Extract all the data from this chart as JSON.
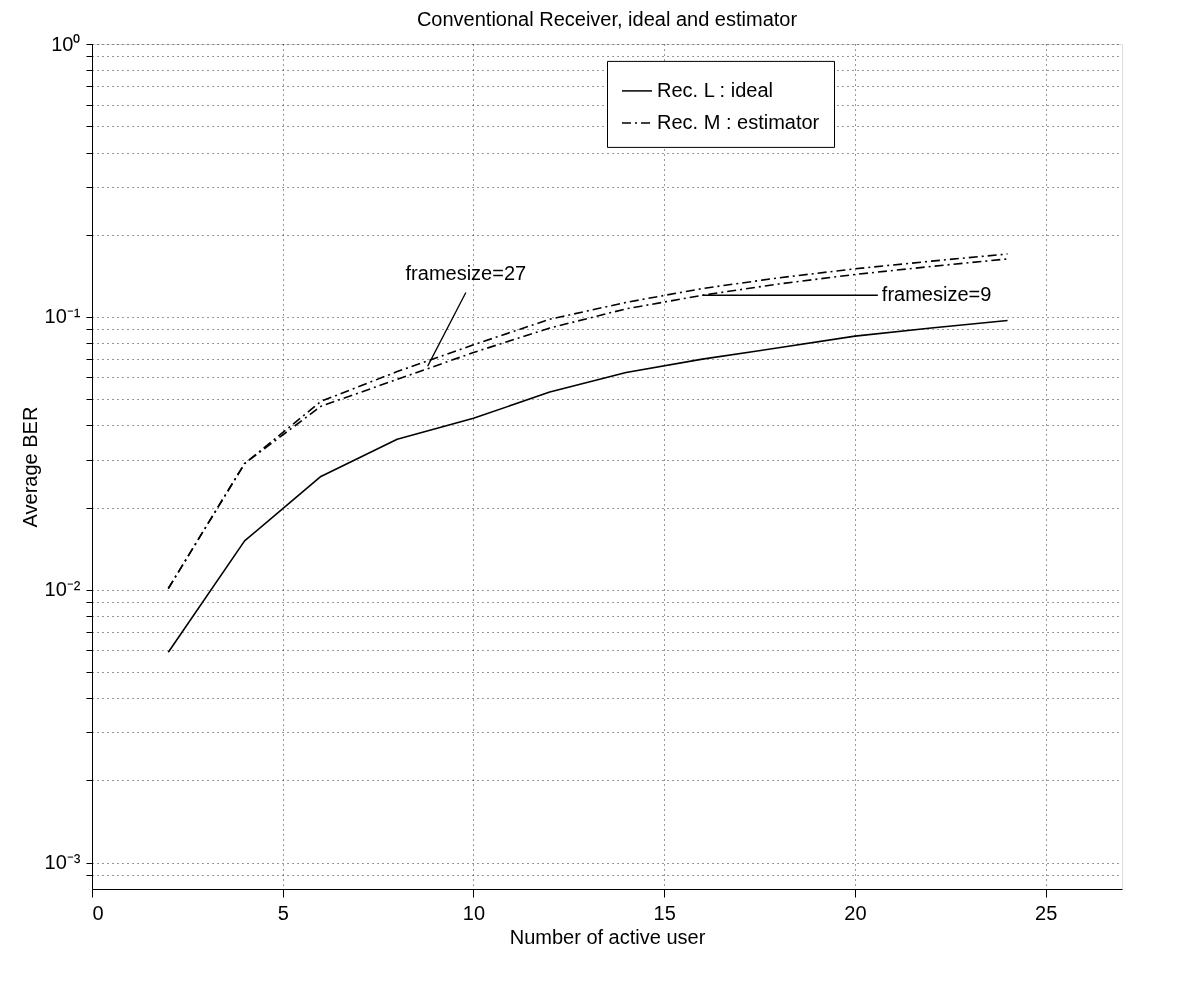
{
  "chart_data": {
    "type": "line",
    "title": "Conventional Receiver, ideal and estimator",
    "xlabel": "Number of active user",
    "ylabel": "Average BER",
    "x": [
      2,
      4,
      6,
      8,
      10,
      12,
      14,
      16,
      18,
      20,
      22,
      24
    ],
    "series": [
      {
        "name": "Rec. L : ideal",
        "color": "#000000",
        "line_style": "solid",
        "values": [
          0.0059,
          0.0151,
          0.026,
          0.0356,
          0.0425,
          0.053,
          0.0625,
          0.07,
          0.077,
          0.085,
          0.091,
          0.097
        ]
      },
      {
        "name": "Rec. M : estimator",
        "color": "#000000",
        "line_style": "dashed",
        "values": [
          0.0101,
          0.029,
          0.049,
          0.063,
          0.079,
          0.098,
          0.113,
          0.127,
          0.139,
          0.15,
          0.16,
          0.17
        ]
      },
      {
        "color": "#000000",
        "line_style": "dashed",
        "values": [
          0.0101,
          0.029,
          0.047,
          0.059,
          0.074,
          0.091,
          0.107,
          0.12,
          0.132,
          0.143,
          0.153,
          0.163
        ]
      }
    ],
    "xlim": [
      0,
      27
    ],
    "xticks": [
      0,
      5,
      10,
      15,
      20,
      25
    ],
    "ylim": [
      0.0008,
      1
    ],
    "log": true,
    "yticks": [
      {
        "value": 0.0009,
        "label": null
      },
      {
        "value": 0.001,
        "label": "10⁻³"
      },
      {
        "value": 0.002,
        "label": null
      },
      {
        "value": 0.003,
        "label": null
      },
      {
        "value": 0.004,
        "label": null
      },
      {
        "value": 0.005,
        "label": null
      },
      {
        "value": 0.006,
        "label": null
      },
      {
        "value": 0.007,
        "label": null
      },
      {
        "value": 0.008,
        "label": null
      },
      {
        "value": 0.009,
        "label": null
      },
      {
        "value": 0.01,
        "label": "10⁻²"
      },
      {
        "value": 0.02,
        "label": null
      },
      {
        "value": 0.03,
        "label": null
      },
      {
        "value": 0.04,
        "label": null
      },
      {
        "value": 0.05,
        "label": null
      },
      {
        "value": 0.06,
        "label": null
      },
      {
        "value": 0.07,
        "label": null
      },
      {
        "value": 0.08,
        "label": null
      },
      {
        "value": 0.09,
        "label": null
      },
      {
        "value": 0.1,
        "label": "10⁻¹"
      },
      {
        "value": 0.2,
        "label": null
      },
      {
        "value": 0.3,
        "label": null
      },
      {
        "value": 0.4,
        "label": null
      },
      {
        "value": 0.5,
        "label": null
      },
      {
        "value": 0.6,
        "label": null
      },
      {
        "value": 0.7,
        "label": null
      },
      {
        "value": 0.8,
        "label": null
      },
      {
        "value": 0.9,
        "label": null
      },
      {
        "value": 1,
        "label": "10⁰"
      }
    ],
    "grid": true,
    "legend": "top right",
    "marker": "none",
    "annotations": [
      {
        "text": "framesize=27",
        "x": 8.8,
        "y": 0.066
      },
      {
        "text": "framesize=9",
        "x": 16,
        "y": 0.12
      }
    ]
  }
}
